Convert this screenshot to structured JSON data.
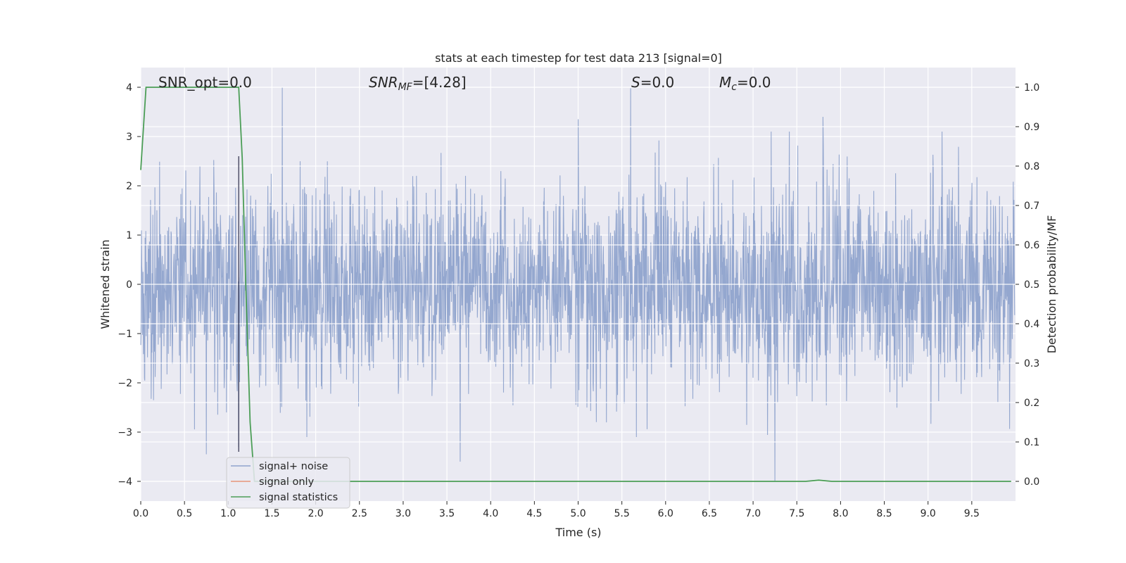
{
  "chart_data": {
    "type": "line",
    "title": "stats at each timestep for test data 213 [signal=0]",
    "xlabel": "Time (s)",
    "ylabel": "Whitened strain",
    "y2label": "Detection probability/MF",
    "xlim": [
      0.0,
      10.0
    ],
    "ylim": [
      -4.4,
      4.4
    ],
    "y2lim": [
      -0.05,
      1.05
    ],
    "xticks": [
      "0.0",
      "0.5",
      "1.0",
      "1.5",
      "2.0",
      "2.5",
      "3.0",
      "3.5",
      "4.0",
      "4.5",
      "5.0",
      "5.5",
      "6.0",
      "6.5",
      "7.0",
      "7.5",
      "8.0",
      "8.5",
      "9.0",
      "9.5"
    ],
    "yticks": [
      "4",
      "3",
      "2",
      "1",
      "0",
      "−1",
      "−2",
      "−3",
      "−4"
    ],
    "y2ticks": [
      "1.0",
      "0.9",
      "0.8",
      "0.7",
      "0.6",
      "0.5",
      "0.4",
      "0.3",
      "0.2",
      "0.1",
      "0.0"
    ],
    "grid": true,
    "legend_position": "lower-left",
    "annotations": {
      "snr_opt": "SNR_opt=0.0",
      "snr_mf_main": "SNR",
      "snr_mf_sub": "MF",
      "snr_mf_value": "=[4.28]",
      "s_main": "S",
      "s_value": "=0.0",
      "mc_main": "M",
      "mc_sub": "c",
      "mc_value": "=0.0"
    },
    "series": [
      {
        "name": "signal+ noise",
        "color": "#8fa3cc",
        "axis": "left",
        "description_values": "white noise, amplitude ~ ±1.5 typical, peaks to ±4",
        "envelope_peaks": [
          {
            "x": 1.62,
            "y": 4.0
          },
          {
            "x": 5.6,
            "y": 3.98
          },
          {
            "x": 5.0,
            "y": 3.35
          },
          {
            "x": 7.8,
            "y": 3.4
          },
          {
            "x": 7.25,
            "y": -4.0
          },
          {
            "x": 3.65,
            "y": -3.6
          },
          {
            "x": 0.75,
            "y": -3.45
          },
          {
            "x": 1.12,
            "y": -3.3
          }
        ]
      },
      {
        "name": "signal only",
        "color": "#e8967a",
        "axis": "left",
        "values": []
      },
      {
        "name": "signal statistics",
        "color": "#4c9e57",
        "axis": "right",
        "x": [
          0.0,
          0.06,
          0.1,
          0.2,
          1.0,
          1.12,
          1.16,
          1.2,
          1.25,
          1.3,
          2.0,
          5.0,
          7.6,
          7.75,
          7.9,
          8.0,
          9.95
        ],
        "values": [
          0.79,
          1.0,
          1.0,
          1.0,
          1.0,
          1.0,
          0.82,
          0.5,
          0.15,
          0.0,
          0.0,
          0.0,
          0.0,
          0.003,
          0.0,
          0.0,
          0.0
        ]
      }
    ],
    "vertical_marker": {
      "x": 1.12,
      "color": "#3b3b55"
    }
  }
}
